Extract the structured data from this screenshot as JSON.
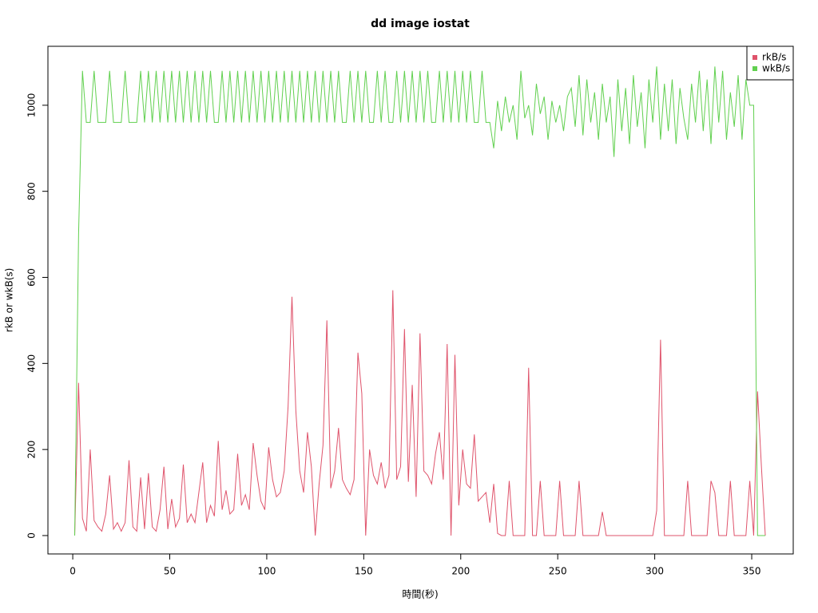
{
  "chart_data": {
    "type": "line",
    "title": "dd image iostat",
    "xlabel": "時間(秒)",
    "ylabel": "rkB or wkB(s)",
    "legend": "top-right",
    "grid": false,
    "xlim": [
      -12.8,
      371.4
    ],
    "ylim": [
      -42.7,
      1137
    ],
    "xticks": [
      0,
      50,
      100,
      150,
      200,
      250,
      300,
      350
    ],
    "yticks": [
      0,
      200,
      400,
      600,
      800,
      1000
    ],
    "x": [
      1,
      3,
      5,
      7,
      9,
      11,
      13,
      15,
      17,
      19,
      21,
      23,
      25,
      27,
      29,
      31,
      33,
      35,
      37,
      39,
      41,
      43,
      45,
      47,
      49,
      51,
      53,
      55,
      57,
      59,
      61,
      63,
      65,
      67,
      69,
      71,
      73,
      75,
      77,
      79,
      81,
      83,
      85,
      87,
      89,
      91,
      93,
      95,
      97,
      99,
      101,
      103,
      105,
      107,
      109,
      111,
      113,
      115,
      117,
      119,
      121,
      123,
      125,
      127,
      129,
      131,
      133,
      135,
      137,
      139,
      141,
      143,
      145,
      147,
      149,
      151,
      153,
      155,
      157,
      159,
      161,
      163,
      165,
      167,
      169,
      171,
      173,
      175,
      177,
      179,
      181,
      183,
      185,
      187,
      189,
      191,
      193,
      195,
      197,
      199,
      201,
      203,
      205,
      207,
      209,
      211,
      213,
      215,
      217,
      219,
      221,
      223,
      225,
      227,
      229,
      231,
      233,
      235,
      237,
      239,
      241,
      243,
      245,
      247,
      249,
      251,
      253,
      255,
      257,
      259,
      261,
      263,
      265,
      267,
      269,
      271,
      273,
      275,
      277,
      279,
      281,
      283,
      285,
      287,
      289,
      291,
      293,
      295,
      297,
      299,
      301,
      303,
      305,
      307,
      309,
      311,
      313,
      315,
      317,
      319,
      321,
      323,
      325,
      327,
      329,
      331,
      333,
      335,
      337,
      339,
      341,
      343,
      345,
      347,
      349,
      351,
      353,
      355,
      357
    ],
    "series": [
      {
        "name": "rkB/s",
        "color": "#DF536B",
        "values": [
          0,
          355,
          40,
          10,
          200,
          35,
          20,
          10,
          50,
          140,
          15,
          30,
          10,
          30,
          175,
          20,
          10,
          135,
          15,
          145,
          20,
          10,
          60,
          160,
          15,
          85,
          20,
          40,
          165,
          30,
          50,
          30,
          100,
          170,
          30,
          70,
          45,
          220,
          60,
          105,
          50,
          60,
          190,
          70,
          95,
          60,
          215,
          140,
          80,
          60,
          205,
          130,
          90,
          100,
          150,
          300,
          555,
          290,
          150,
          100,
          240,
          160,
          0,
          120,
          210,
          500,
          110,
          150,
          250,
          130,
          110,
          95,
          130,
          425,
          330,
          0,
          200,
          140,
          120,
          170,
          110,
          140,
          570,
          130,
          160,
          480,
          125,
          350,
          90,
          470,
          150,
          140,
          120,
          190,
          240,
          130,
          445,
          0,
          420,
          70,
          200,
          120,
          110,
          235,
          80,
          90,
          100,
          30,
          120,
          5,
          0,
          0,
          127,
          0,
          0,
          0,
          0,
          390,
          0,
          0,
          127,
          0,
          0,
          0,
          0,
          127,
          0,
          0,
          0,
          0,
          127,
          0,
          0,
          0,
          0,
          0,
          55,
          0,
          0,
          0,
          0,
          0,
          0,
          0,
          0,
          0,
          0,
          0,
          0,
          0,
          58,
          455,
          0,
          0,
          0,
          0,
          0,
          0,
          127,
          0,
          0,
          0,
          0,
          0,
          127,
          100,
          0,
          0,
          0,
          127,
          0,
          0,
          0,
          0,
          127,
          0,
          335,
          160,
          0
        ]
      },
      {
        "name": "wkB/s",
        "color": "#61D04F",
        "values": [
          0,
          700,
          1080,
          960,
          960,
          1080,
          960,
          960,
          960,
          1080,
          960,
          960,
          960,
          1080,
          960,
          960,
          960,
          1080,
          960,
          1080,
          960,
          1080,
          960,
          1080,
          960,
          1080,
          960,
          1080,
          960,
          1080,
          960,
          1080,
          960,
          1080,
          960,
          1080,
          960,
          960,
          1080,
          960,
          1080,
          960,
          1080,
          960,
          1080,
          960,
          1080,
          960,
          1080,
          960,
          1080,
          960,
          1080,
          960,
          1080,
          960,
          1080,
          960,
          1080,
          960,
          1080,
          960,
          1080,
          960,
          1080,
          960,
          1080,
          960,
          1080,
          960,
          960,
          1080,
          960,
          1080,
          960,
          1080,
          960,
          960,
          1080,
          960,
          1080,
          960,
          960,
          1080,
          960,
          1080,
          960,
          1080,
          960,
          1080,
          960,
          1080,
          960,
          960,
          1080,
          960,
          1080,
          960,
          1080,
          960,
          1080,
          960,
          1080,
          960,
          960,
          1080,
          960,
          960,
          900,
          1010,
          940,
          1020,
          960,
          1000,
          920,
          1080,
          970,
          1000,
          930,
          1050,
          980,
          1020,
          920,
          1010,
          960,
          1000,
          940,
          1020,
          1040,
          950,
          1070,
          930,
          1060,
          960,
          1030,
          920,
          1050,
          960,
          1020,
          880,
          1060,
          940,
          1040,
          910,
          1070,
          950,
          1030,
          900,
          1060,
          960,
          1090,
          920,
          1050,
          940,
          1060,
          910,
          1040,
          970,
          920,
          1050,
          960,
          1080,
          940,
          1060,
          910,
          1090,
          960,
          1080,
          920,
          1030,
          950,
          1070,
          920,
          1060,
          1000,
          1000,
          0,
          0,
          0
        ]
      }
    ]
  }
}
